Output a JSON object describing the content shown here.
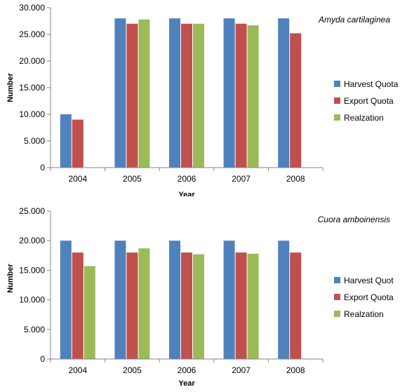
{
  "chart_data": [
    {
      "type": "bar",
      "title": "Amyda cartilaginea",
      "xlabel": "Year",
      "ylabel": "Number",
      "categories": [
        "2004",
        "2005",
        "2006",
        "2007",
        "2008"
      ],
      "ylim": [
        0,
        30000
      ],
      "yticks": [
        0,
        5000,
        10000,
        15000,
        20000,
        25000,
        30000
      ],
      "ytick_labels": [
        "0",
        "5.000",
        "10.000",
        "15.000",
        "20.000",
        "25.000",
        "30.000"
      ],
      "grid": false,
      "legend_position": "right",
      "series": [
        {
          "name": "Harvest Quota",
          "color": "#4f81bd",
          "values": [
            10000,
            28000,
            28000,
            28000,
            28000
          ]
        },
        {
          "name": "Export Quota",
          "color": "#c0504d",
          "values": [
            9000,
            27000,
            27000,
            27000,
            25200
          ]
        },
        {
          "name": "Realzation",
          "color": "#9bbb59",
          "values": [
            null,
            27800,
            27000,
            26700,
            null
          ]
        }
      ]
    },
    {
      "type": "bar",
      "title": "Cuora amboinensis",
      "xlabel": "Year",
      "ylabel": "Number",
      "categories": [
        "2004",
        "2005",
        "2006",
        "2007",
        "2008"
      ],
      "ylim": [
        0,
        25000
      ],
      "yticks": [
        0,
        5000,
        10000,
        15000,
        20000,
        25000
      ],
      "ytick_labels": [
        "0",
        "5.000",
        "10.000",
        "15.000",
        "20.000",
        "25.000"
      ],
      "grid": false,
      "legend_position": "right",
      "series": [
        {
          "name": "Harvest Quot",
          "color": "#4f81bd",
          "values": [
            20000,
            20000,
            20000,
            20000,
            20000
          ]
        },
        {
          "name": "Export Quota",
          "color": "#c0504d",
          "values": [
            18000,
            18000,
            18000,
            18000,
            18000
          ]
        },
        {
          "name": "Realzation",
          "color": "#9bbb59",
          "values": [
            15700,
            18700,
            17700,
            17800,
            null
          ]
        }
      ]
    }
  ]
}
